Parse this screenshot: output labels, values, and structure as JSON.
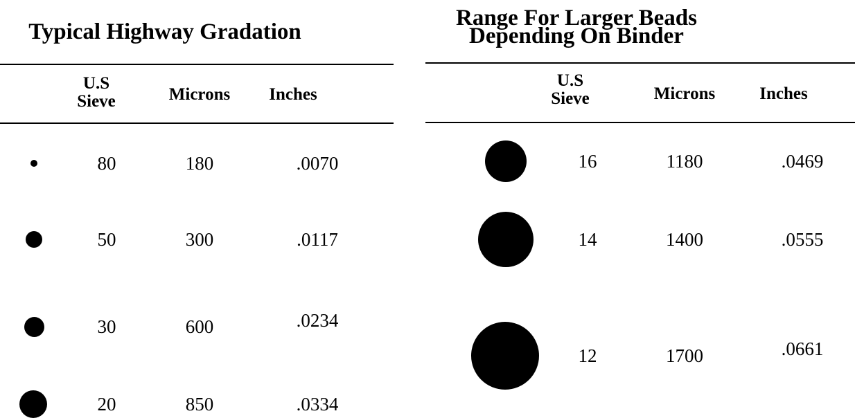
{
  "highway_gradation": {
    "title": "Typical Highway Gradation",
    "headers": {
      "sieve": "U.S\nSieve",
      "microns": "Microns",
      "inches": "Inches"
    },
    "rows": [
      {
        "sieve": "80",
        "microns": "180",
        "inches": ".0070"
      },
      {
        "sieve": "50",
        "microns": "300",
        "inches": ".0117"
      },
      {
        "sieve": "30",
        "microns": "600",
        "inches": ".0234"
      },
      {
        "sieve": "20",
        "microns": "850",
        "inches": ".0334"
      }
    ]
  },
  "larger_beads": {
    "title": "Range For Larger Beads\nDepending On Binder",
    "headers": {
      "sieve": "U.S\nSieve",
      "microns": "Microns",
      "inches": "Inches"
    },
    "rows": [
      {
        "sieve": "16",
        "microns": "1180",
        "inches": ".0469"
      },
      {
        "sieve": "14",
        "microns": "1400",
        "inches": ".0555"
      },
      {
        "sieve": "12",
        "microns": "1700",
        "inches": ".0661"
      }
    ]
  }
}
